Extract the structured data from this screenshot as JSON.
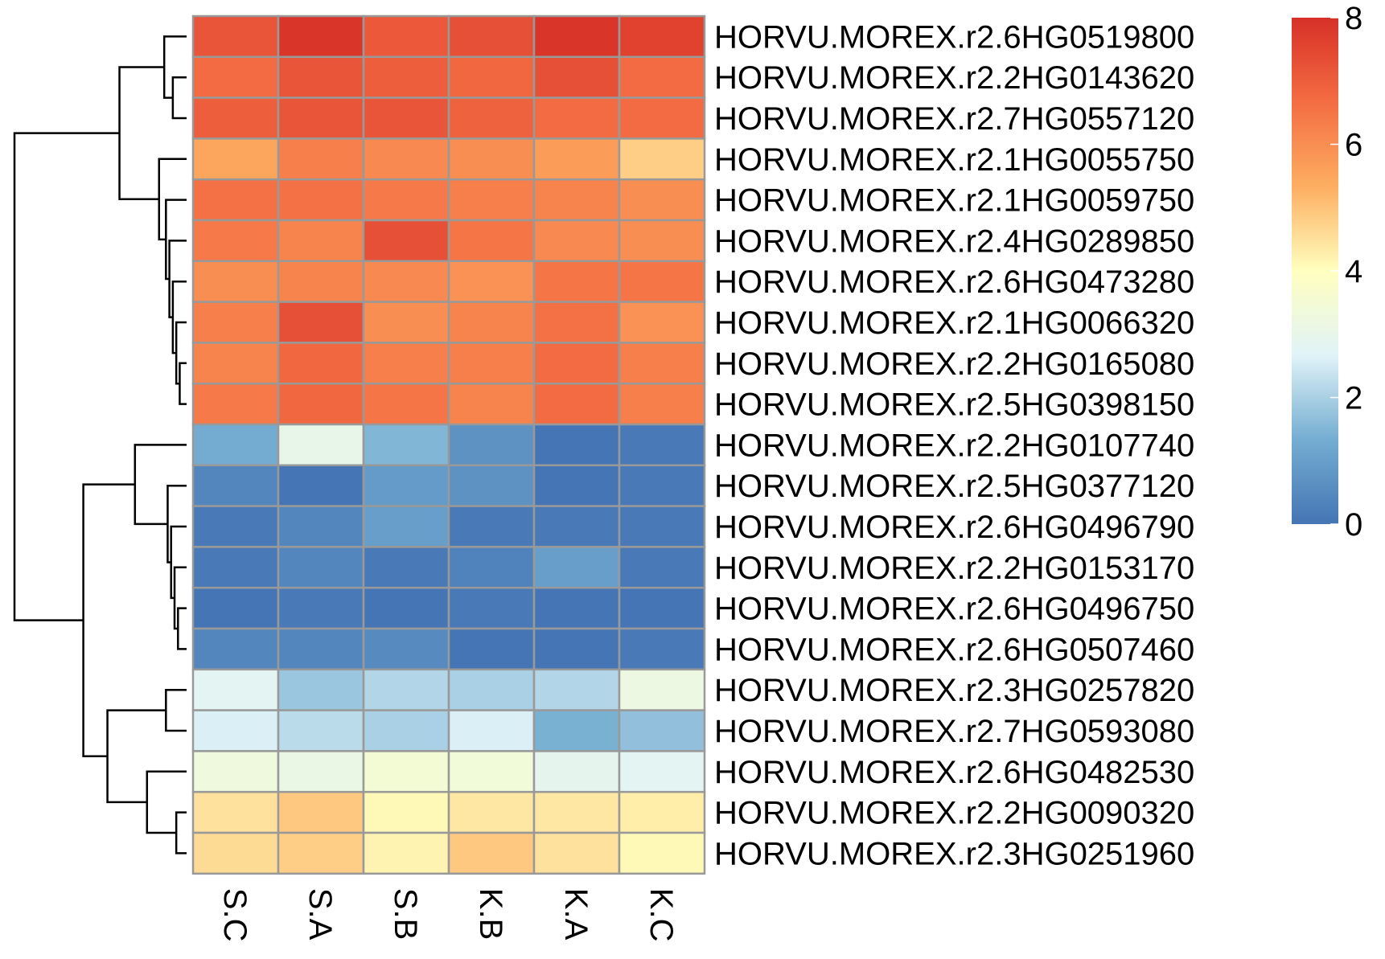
{
  "chart_data": {
    "type": "heatmap",
    "columns": [
      "S.C",
      "S.A",
      "S.B",
      "K.B",
      "K.A",
      "K.C"
    ],
    "rows": [
      "HORVU.MOREX.r2.6HG0519800",
      "HORVU.MOREX.r2.2HG0143620",
      "HORVU.MOREX.r2.7HG0557120",
      "HORVU.MOREX.r2.1HG0055750",
      "HORVU.MOREX.r2.1HG0059750",
      "HORVU.MOREX.r2.4HG0289850",
      "HORVU.MOREX.r2.6HG0473280",
      "HORVU.MOREX.r2.1HG0066320",
      "HORVU.MOREX.r2.2HG0165080",
      "HORVU.MOREX.r2.5HG0398150",
      "HORVU.MOREX.r2.2HG0107740",
      "HORVU.MOREX.r2.5HG0377120",
      "HORVU.MOREX.r2.6HG0496790",
      "HORVU.MOREX.r2.2HG0153170",
      "HORVU.MOREX.r2.6HG0496750",
      "HORVU.MOREX.r2.6HG0507460",
      "HORVU.MOREX.r2.3HG0257820",
      "HORVU.MOREX.r2.7HG0593080",
      "HORVU.MOREX.r2.6HG0482530",
      "HORVU.MOREX.r2.2HG0090320",
      "HORVU.MOREX.r2.3HG0251960"
    ],
    "values": [
      [
        7.2,
        7.9,
        7.1,
        7.3,
        7.9,
        7.6
      ],
      [
        6.7,
        7.2,
        7.0,
        6.8,
        7.3,
        6.7
      ],
      [
        7.0,
        7.2,
        7.2,
        6.9,
        6.7,
        6.7
      ],
      [
        5.5,
        6.3,
        6.1,
        6.0,
        5.7,
        4.8
      ],
      [
        6.6,
        6.6,
        6.4,
        6.3,
        6.2,
        6.0
      ],
      [
        6.4,
        6.2,
        7.3,
        6.5,
        6.1,
        6.0
      ],
      [
        6.0,
        6.2,
        6.1,
        5.9,
        6.5,
        6.5
      ],
      [
        6.3,
        7.3,
        6.0,
        6.2,
        6.6,
        5.9
      ],
      [
        6.2,
        6.8,
        6.3,
        6.3,
        6.7,
        6.3
      ],
      [
        6.4,
        6.8,
        6.5,
        6.2,
        6.7,
        6.3
      ],
      [
        1.3,
        3.0,
        1.5,
        0.7,
        0.0,
        0.1
      ],
      [
        0.4,
        0.0,
        0.9,
        0.7,
        0.0,
        0.1
      ],
      [
        0.1,
        0.4,
        1.0,
        0.1,
        0.1,
        0.1
      ],
      [
        0.1,
        0.4,
        0.1,
        0.3,
        1.0,
        0.1
      ],
      [
        0.0,
        0.1,
        0.0,
        0.1,
        0.0,
        0.0
      ],
      [
        0.4,
        0.4,
        0.5,
        0.0,
        0.0,
        0.1
      ],
      [
        2.8,
        1.8,
        2.1,
        2.0,
        2.1,
        3.2
      ],
      [
        2.6,
        2.2,
        2.0,
        2.6,
        1.4,
        1.7
      ],
      [
        3.3,
        3.1,
        3.5,
        3.4,
        2.9,
        2.8
      ],
      [
        4.5,
        4.9,
        4.1,
        4.4,
        4.4,
        4.3
      ],
      [
        4.6,
        4.8,
        4.2,
        4.9,
        4.5,
        4.1
      ]
    ],
    "colorbar": {
      "min": 0,
      "max": 8,
      "ticks": [
        "0",
        "2",
        "4",
        "6",
        "8"
      ],
      "tick_values": [
        0,
        2,
        4,
        6,
        8
      ],
      "colors": [
        "#4575b4",
        "#74add1",
        "#e0f3f8",
        "#ffffbf",
        "#fdae61",
        "#f46d43",
        "#d73027"
      ]
    },
    "row_dendrogram": {
      "merges": [
        [
          -2,
          -3
        ],
        [
          -1,
          1
        ],
        [
          -9,
          -10
        ],
        [
          -8,
          3
        ],
        [
          -7,
          4
        ],
        [
          -6,
          5
        ],
        [
          -5,
          6
        ],
        [
          -4,
          7
        ],
        [
          2,
          8
        ],
        [
          -15,
          -16
        ],
        [
          -14,
          10
        ],
        [
          -13,
          11
        ],
        [
          -12,
          12
        ],
        [
          -11,
          13
        ],
        [
          -20,
          -21
        ],
        [
          -19,
          15
        ],
        [
          -17,
          -18
        ],
        [
          17,
          16
        ],
        [
          14,
          18
        ],
        [
          9,
          19
        ]
      ],
      "heights": [
        0.08,
        0.13,
        0.04,
        0.06,
        0.08,
        0.1,
        0.12,
        0.16,
        0.39,
        0.05,
        0.07,
        0.09,
        0.11,
        0.3,
        0.06,
        0.23,
        0.12,
        0.46,
        0.6,
        1.0
      ]
    },
    "legend": "right",
    "grid": false,
    "cell_border_color": "#999999"
  }
}
